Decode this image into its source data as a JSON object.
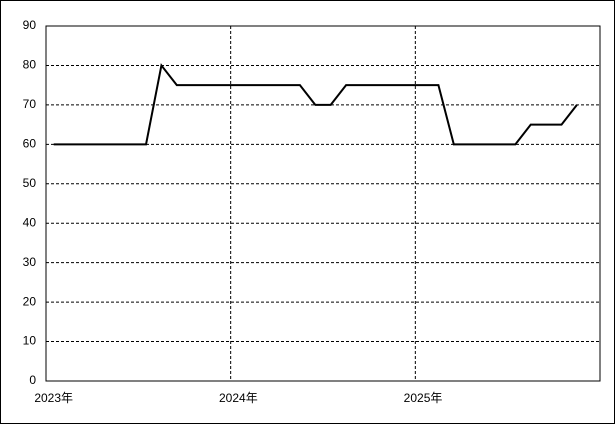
{
  "chart_data": {
    "type": "line",
    "categories": [
      "2023年",
      null,
      null,
      null,
      null,
      null,
      null,
      null,
      null,
      null,
      null,
      null,
      "2024年",
      null,
      null,
      null,
      null,
      null,
      null,
      null,
      null,
      null,
      null,
      null,
      "2025年",
      null,
      null,
      null,
      null,
      null,
      null,
      null,
      null,
      null,
      null,
      null
    ],
    "values": [
      60,
      60,
      60,
      60,
      60,
      60,
      60,
      80,
      75,
      75,
      75,
      75,
      75,
      75,
      75,
      75,
      75,
      70,
      70,
      75,
      75,
      75,
      75,
      75,
      75,
      75,
      60,
      60,
      60,
      60,
      60,
      65,
      65,
      65,
      70,
      null
    ],
    "color": "#000000",
    "ylim": [
      0,
      90
    ],
    "yticks": [
      0,
      10,
      20,
      30,
      40,
      50,
      60,
      70,
      80,
      90
    ],
    "grid": true
  }
}
